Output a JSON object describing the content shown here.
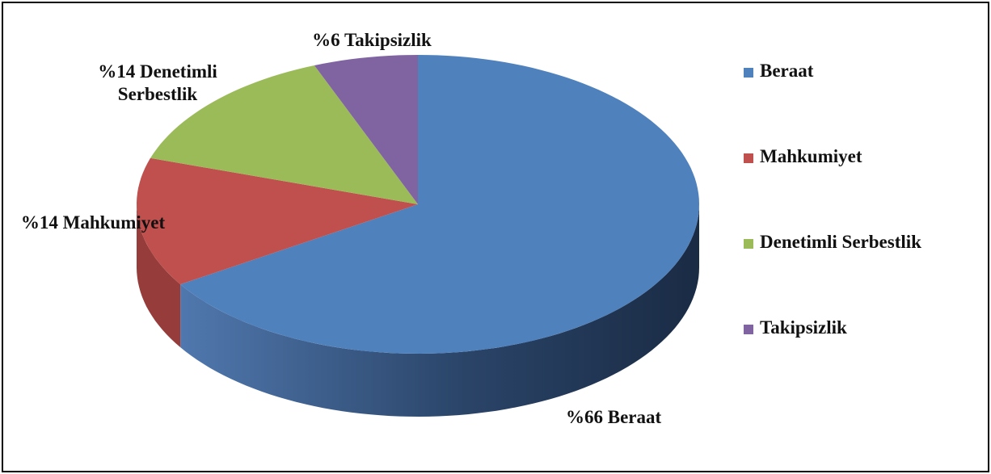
{
  "chart_data": {
    "type": "pie3d",
    "categories": [
      "Beraat",
      "Mahkumiyet",
      "Denetimli Serbestlik",
      "Takipsizlik"
    ],
    "values": [
      66,
      14,
      14,
      6
    ],
    "value_labels": [
      "%66 Beraat",
      "%14 Mahkumiyet",
      "%14 Denetimli Serbestlik",
      "%6 Takipsizlik"
    ],
    "colors": [
      "#4f81bd",
      "#c0504d",
      "#9bbb59",
      "#8064a2"
    ],
    "legend": "right"
  }
}
